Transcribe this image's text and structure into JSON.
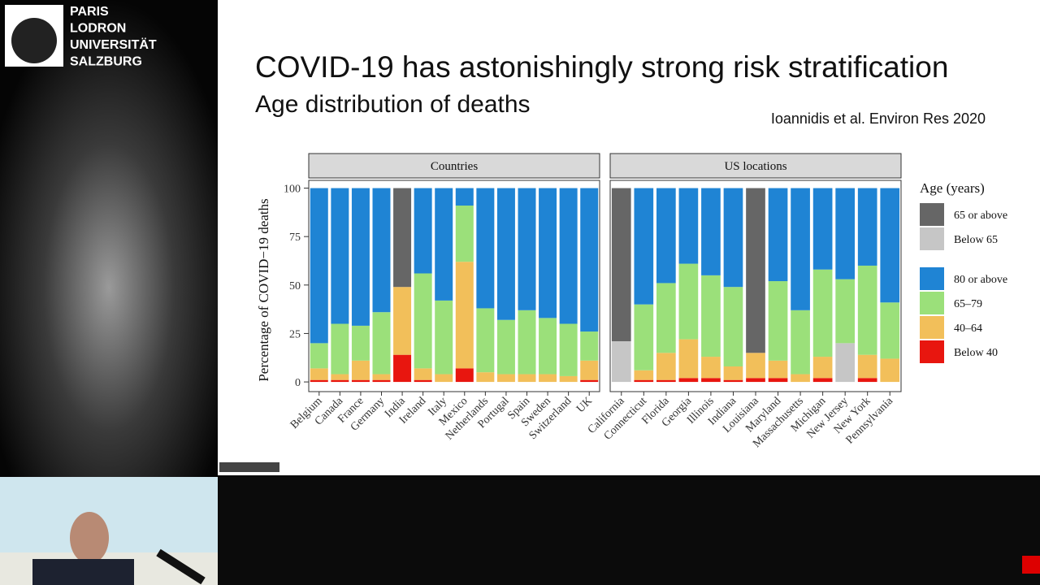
{
  "header": {
    "logo_lines": [
      "PARIS",
      "LODRON",
      "UNIVERSITÄT",
      "SALZBURG"
    ]
  },
  "chart_data": {
    "type": "stacked-bar",
    "title": "COVID-19 has astonishingly strong risk stratification",
    "subtitle": "Age distribution of deaths",
    "source": "Ioannidis et al. Environ Res 2020",
    "y_label": "Percentage of COVID−19 deaths",
    "legend_title": "Age (years)",
    "ylim": [
      -5,
      104
    ],
    "yticks": [
      0,
      25,
      50,
      75,
      100
    ],
    "panels": [
      {
        "title": "Countries",
        "categories": [
          "Belgium",
          "Canada",
          "France",
          "Germany",
          "India",
          "Ireland",
          "Italy",
          "Mexico",
          "Netherlands",
          "Portugal",
          "Spain",
          "Sweden",
          "Switzerland",
          "UK"
        ]
      },
      {
        "title": "US locations",
        "categories": [
          "California",
          "Connecticut",
          "Florida",
          "Georgia",
          "Illinois",
          "Indiana",
          "Louisiana",
          "Maryland",
          "Massachusetts",
          "Michigan",
          "New Jersey",
          "New York",
          "Pennsylvania"
        ]
      }
    ],
    "series": [
      {
        "name": "65 or above",
        "color": "#666666",
        "values": [
          [
            null,
            null,
            null,
            null,
            51,
            null,
            null,
            null,
            null,
            null,
            null,
            null,
            null,
            null
          ],
          [
            79,
            null,
            null,
            null,
            null,
            null,
            85,
            null,
            null,
            null,
            null,
            null,
            null
          ]
        ]
      },
      {
        "name": "Below 65",
        "color": "#c6c6c6",
        "values": [
          [
            null,
            null,
            null,
            null,
            null,
            null,
            null,
            null,
            null,
            null,
            null,
            null,
            null,
            null
          ],
          [
            21,
            null,
            null,
            null,
            null,
            null,
            null,
            null,
            null,
            null,
            20,
            null,
            null
          ]
        ]
      },
      {
        "name": "80 or above",
        "color": "#1f84d4",
        "values": [
          [
            80,
            70,
            71,
            64,
            null,
            44,
            58,
            9,
            62,
            68,
            63,
            67,
            70,
            74
          ],
          [
            null,
            60,
            49,
            39,
            45,
            51,
            null,
            48,
            63,
            42,
            47,
            40,
            59
          ]
        ]
      },
      {
        "name": "65–79",
        "color": "#9be07a",
        "values": [
          [
            13,
            26,
            18,
            32,
            null,
            49,
            38,
            29,
            33,
            28,
            33,
            29,
            27,
            15
          ],
          [
            null,
            34,
            36,
            39,
            42,
            41,
            null,
            41,
            33,
            45,
            33,
            46,
            29
          ]
        ]
      },
      {
        "name": "40–64",
        "color": "#f2bf5a",
        "values": [
          [
            6,
            3,
            10,
            3,
            35,
            6,
            4,
            55,
            5,
            4,
            4,
            4,
            3,
            10
          ],
          [
            null,
            5,
            14,
            20,
            11,
            7,
            13,
            9,
            4,
            11,
            null,
            12,
            12
          ]
        ]
      },
      {
        "name": "Below 40",
        "color": "#e8160f",
        "values": [
          [
            1,
            1,
            1,
            1,
            14,
            1,
            0,
            7,
            0,
            0,
            0,
            0,
            0,
            1
          ],
          [
            null,
            1,
            1,
            2,
            2,
            1,
            2,
            2,
            0,
            2,
            null,
            2,
            0
          ]
        ]
      }
    ]
  }
}
